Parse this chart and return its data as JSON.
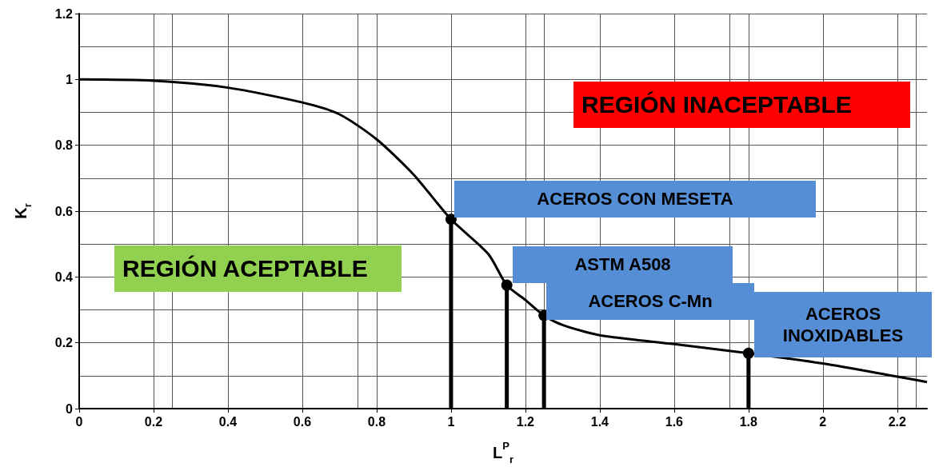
{
  "chart_data": {
    "type": "line",
    "xlabel": "L$^{P}$$_{r}$",
    "ylabel": "K$_{r}$",
    "xlim": [
      0,
      2.28
    ],
    "xticks": [
      0,
      0.2,
      0.4,
      0.6,
      0.8,
      1,
      1.2,
      1.4,
      1.6,
      1.8,
      2,
      2.2
    ],
    "ylim": [
      0,
      1.2
    ],
    "yticks": [
      0,
      0.2,
      0.4,
      0.6,
      0.8,
      1,
      1.2
    ],
    "grid": true,
    "series": [
      {
        "color": "#000000",
        "x": [
          0,
          0.2,
          0.4,
          0.6,
          0.7,
          0.8,
          0.9,
          1,
          1.1,
          1.15,
          1.2,
          1.25,
          1.3,
          1.4,
          1.6,
          1.8,
          2,
          2.2,
          2.28
        ],
        "values": [
          1,
          0.996,
          0.975,
          0.93,
          0.894,
          0.818,
          0.71,
          0.575,
          0.47,
          0.375,
          0.33,
          0.283,
          0.254,
          0.223,
          0.196,
          0.168,
          0.137,
          0.097,
          0.081
        ]
      },
      {
        "type": "lollipop",
        "color": "#000000",
        "x": [
          1,
          1.15,
          1.25,
          1.8
        ],
        "values": [
          0.575,
          0.375,
          0.283,
          0.168
        ]
      }
    ],
    "annotations": [
      "REGIÓN INACEPTABLE",
      "REGIÓN ACEPTABLE",
      "ACEROS CON MESETA",
      "ASTM A508",
      "ACEROS C-Mn",
      "ACEROS INOXIDABLES"
    ]
  }
}
